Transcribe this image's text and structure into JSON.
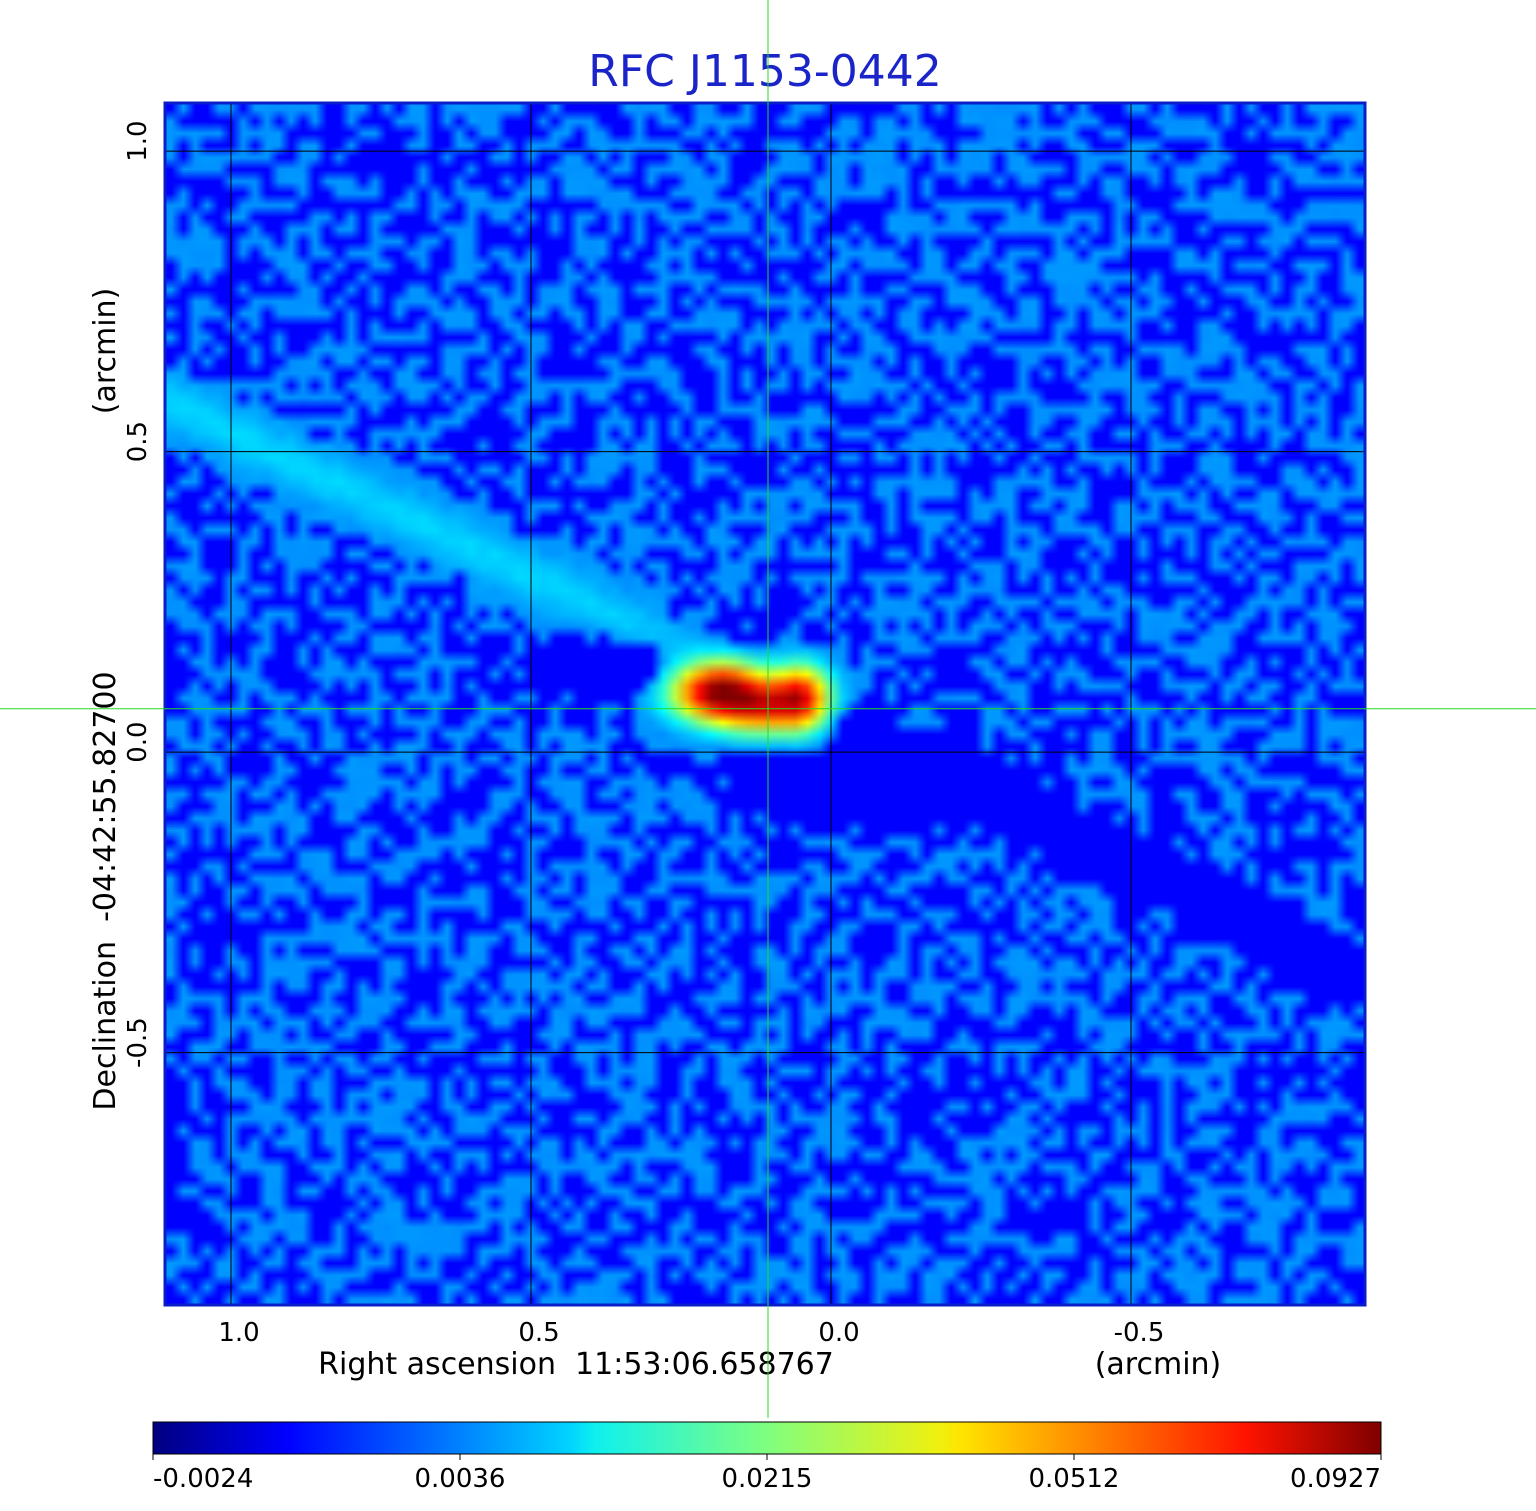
{
  "chart_data": {
    "type": "heatmap",
    "title": "RFC J1153-0442",
    "xlabel": "Right ascension  11:53:06.658767",
    "xunit": "(arcmin)",
    "ylabel": "Declination  -04:42:55.82700",
    "yunit": "(arcmin)",
    "xlim": [
      1.11,
      -0.89
    ],
    "ylim": [
      -0.92,
      1.08
    ],
    "x_direction": "decreasing to the right",
    "xticks": [
      {
        "value": 1.0,
        "label": "1.0"
      },
      {
        "value": 0.5,
        "label": "0.5"
      },
      {
        "value": 0.0,
        "label": "0.0"
      },
      {
        "value": -0.5,
        "label": "-0.5"
      }
    ],
    "yticks": [
      {
        "value": 1.0,
        "label": "1.0"
      },
      {
        "value": 0.5,
        "label": "0.5"
      },
      {
        "value": 0.0,
        "label": "0.0"
      },
      {
        "value": -0.5,
        "label": "-0.5"
      }
    ],
    "grid": true,
    "crosshair": {
      "x": 0.105,
      "y": 0.072,
      "color": "#22dd22"
    },
    "colormap": "jet",
    "colorbar": {
      "ticks": [
        "-0.0024",
        "0.0036",
        "0.0215",
        "0.0512",
        "0.0927"
      ],
      "placement": "bottom"
    },
    "features": [
      {
        "type": "source",
        "x": 0.185,
        "y": 0.1,
        "peak": 0.0927,
        "sx": 0.045,
        "sy": 0.028
      },
      {
        "type": "source",
        "x": 0.055,
        "y": 0.09,
        "peak": 0.075,
        "sx": 0.03,
        "sy": 0.03
      },
      {
        "type": "source",
        "x": 0.12,
        "y": 0.075,
        "peak": 0.05,
        "sx": 0.04,
        "sy": 0.025
      },
      {
        "type": "negative",
        "x": 0.28,
        "y": 0.15,
        "peak": -0.0024
      },
      {
        "type": "negative",
        "x": -0.05,
        "y": -0.05,
        "peak": -0.0022
      },
      {
        "type": "stripe",
        "angle": "upper-left to lower-right",
        "level": 0.003
      }
    ],
    "background_level": 0.0
  }
}
